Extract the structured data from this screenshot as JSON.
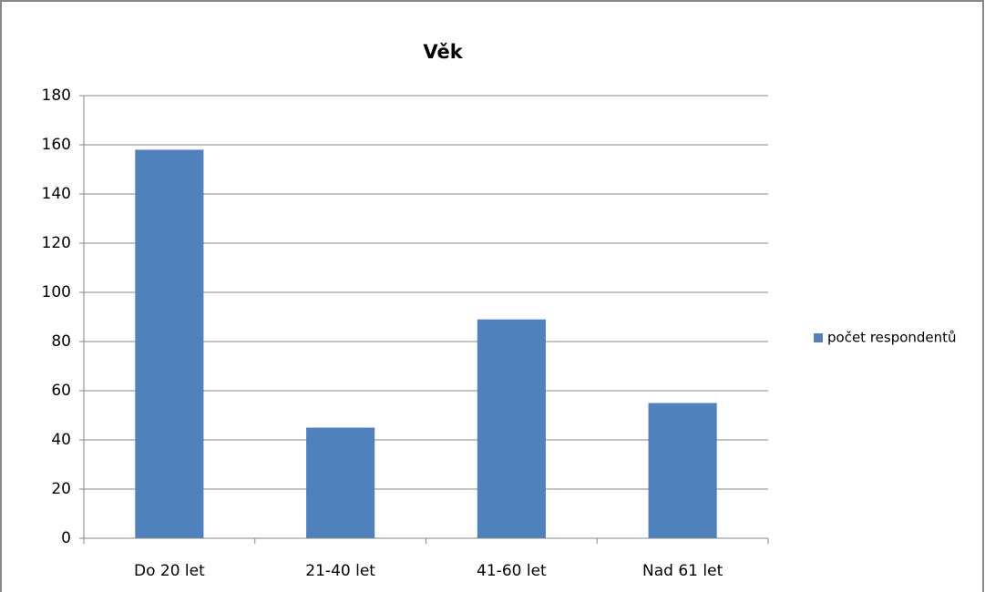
{
  "chart_data": {
    "type": "bar",
    "title": "Věk",
    "categories": [
      "Do 20 let",
      "21-40 let",
      "41-60 let",
      "Nad 61 let"
    ],
    "series": [
      {
        "name": "počet respondentů",
        "color": "#4f81bd",
        "values": [
          158,
          45,
          89,
          55
        ]
      }
    ],
    "ylim": [
      0,
      180
    ],
    "yticks": [
      0,
      20,
      40,
      60,
      80,
      100,
      120,
      140,
      160,
      180
    ],
    "grid": true,
    "legend": "right"
  }
}
